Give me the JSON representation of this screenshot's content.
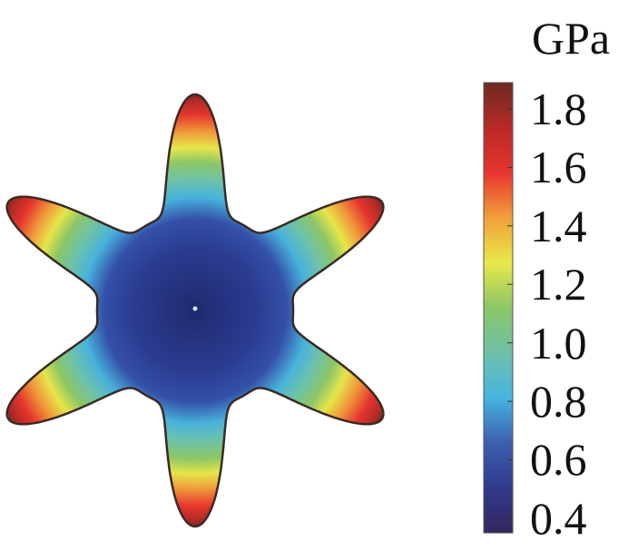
{
  "chart_data": {
    "type": "heatmap",
    "description_kind": "3D surface colored by value",
    "colorbar": {
      "unit": "GPa",
      "range": [
        0.35,
        1.89
      ],
      "ticks": [
        1.8,
        1.6,
        1.4,
        1.2,
        1.0,
        0.8,
        0.6,
        0.4
      ],
      "tick_labels": [
        "1.8",
        "1.6",
        "1.4",
        "1.2",
        "1.0",
        "0.8",
        "0.6",
        "0.4"
      ],
      "colors": [
        "#35265e",
        "#2f3a8c",
        "#3d5fb0",
        "#46b4df",
        "#6fc0a8",
        "#8cc666",
        "#e8e84a",
        "#f0a03a",
        "#e8342e",
        "#b72a26",
        "#6e2a22"
      ]
    },
    "surface": {
      "lobes": 6,
      "min_value_location": "center",
      "max_value_location": "lobe tips",
      "min_value": 0.4,
      "max_value": 1.85
    }
  }
}
